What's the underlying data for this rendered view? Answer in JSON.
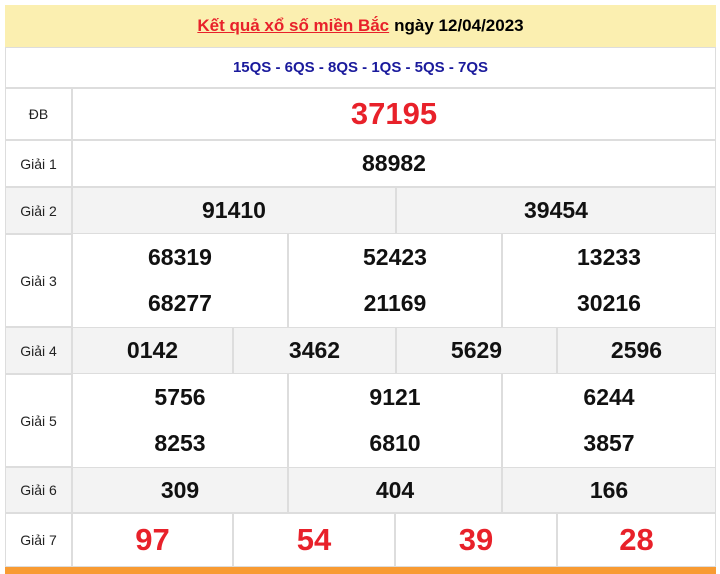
{
  "header": {
    "link_text": "Kết quả xổ số miền Bắc",
    "date_text": "ngày 12/04/2023"
  },
  "codes": "15QS - 6QS - 8QS - 1QS - 5QS - 7QS",
  "prizes": [
    {
      "label": "ĐB",
      "numbers": [
        "37195"
      ]
    },
    {
      "label": "Giải 1",
      "numbers": [
        "88982"
      ]
    },
    {
      "label": "Giải 2",
      "numbers": [
        "91410",
        "39454"
      ]
    },
    {
      "label": "Giải 3",
      "numbers": [
        "68319",
        "52423",
        "13233",
        "68277",
        "21169",
        "30216"
      ]
    },
    {
      "label": "Giải 4",
      "numbers": [
        "0142",
        "3462",
        "5629",
        "2596"
      ]
    },
    {
      "label": "Giải 5",
      "numbers": [
        "5756",
        "9121",
        "6244",
        "8253",
        "6810",
        "3857"
      ]
    },
    {
      "label": "Giải 6",
      "numbers": [
        "309",
        "404",
        "166"
      ]
    },
    {
      "label": "Giải 7",
      "numbers": [
        "97",
        "54",
        "39",
        "28"
      ]
    }
  ],
  "colors": {
    "header_bg": "#fbefb0",
    "special_red": "#e8212a",
    "codes_blue": "#1a1a9c",
    "footer_bar": "#f89b33"
  }
}
